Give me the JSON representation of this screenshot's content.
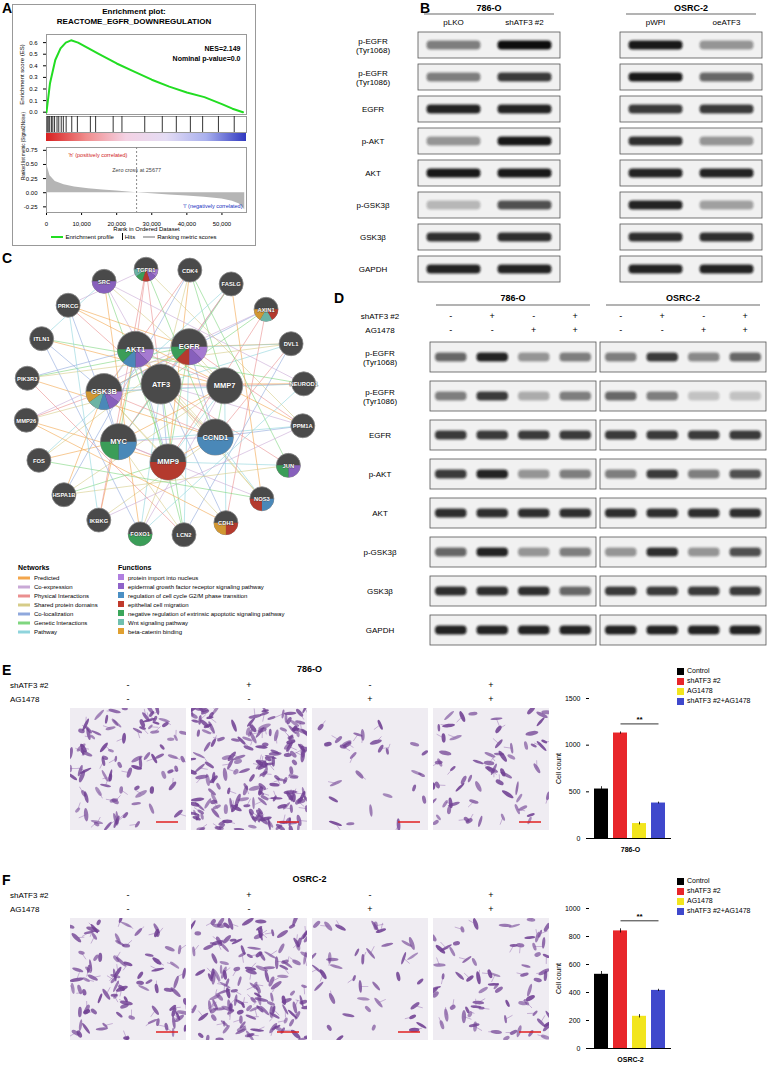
{
  "panel_labels": [
    "A",
    "B",
    "C",
    "D",
    "E",
    "F"
  ],
  "chart_data": [
    {
      "type": "line",
      "title": "Enrichment plot:",
      "subtitle": "REACTOME_EGFR_DOWNREGULATION",
      "ylabel": "Enrichment score (ES)",
      "x": [
        0,
        1000,
        2500,
        4000,
        5500,
        7000,
        9000,
        12000,
        15000,
        20000,
        25000,
        30000,
        35000,
        40000,
        45000,
        50000,
        53000,
        56000
      ],
      "series": [
        {
          "name": "Enrichment profile",
          "color": "#22dd22",
          "values": [
            0,
            0.25,
            0.45,
            0.55,
            0.6,
            0.62,
            0.6,
            0.55,
            0.5,
            0.42,
            0.35,
            0.28,
            0.22,
            0.17,
            0.13,
            0.07,
            0.03,
            0
          ]
        }
      ],
      "hits": [
        200,
        500,
        900,
        1400,
        1800,
        2300,
        3000,
        3500,
        4200,
        4800,
        5600,
        7200,
        8800,
        12500,
        14000,
        19000,
        21500,
        28000,
        33000,
        37000,
        41000,
        44500,
        49000,
        53500
      ],
      "hits_label": "Hits",
      "annotations": [
        "NES=2.149",
        "Nominal p-value=0.0"
      ],
      "xlim": [
        0,
        57000
      ],
      "ylim": [
        -0.02,
        0.67
      ],
      "yticks": [
        {
          "value": 0,
          "label": "0.0"
        },
        0.1,
        0.2,
        0.3,
        0.4,
        0.5,
        0.6
      ],
      "tick_labels": "y"
    },
    {
      "type": "area",
      "xlabel": "Rank in Ordered Dataset",
      "ylabel": "Ranked list metric (Signal2Noise)",
      "x": [
        0,
        300,
        1000,
        2500,
        5000,
        8000,
        12000,
        16000,
        20000,
        25677,
        30000,
        35000,
        40000,
        45000,
        50000,
        53000,
        55000,
        56500
      ],
      "series": [
        {
          "name": "Ranking metric scores",
          "color": "#b5b5b5",
          "values": [
            0.72,
            0.45,
            0.3,
            0.2,
            0.14,
            0.1,
            0.07,
            0.05,
            0.03,
            0,
            -0.02,
            -0.04,
            -0.06,
            -0.08,
            -0.11,
            -0.15,
            -0.2,
            -0.3
          ]
        }
      ],
      "annotations": [
        {
          "text": "Zero cross at 25677",
          "x": 25677
        }
      ],
      "positive_label": "'h' (positively correlated)",
      "negative_label": "'l' (negatively correlated)",
      "xlim": [
        0,
        57000
      ],
      "ylim": [
        -0.35,
        0.8
      ],
      "xticks": [
        0,
        {
          "value": 10000,
          "label": "10,000"
        },
        {
          "value": 20000,
          "label": "20,000"
        },
        {
          "value": 30000,
          "label": "30,000"
        },
        {
          "value": 40000,
          "label": "40,000"
        },
        {
          "value": 50000,
          "label": "50,000"
        }
      ],
      "yticks": [
        0.75,
        {
          "value": 0.5,
          "label": "0.50"
        },
        0.25,
        {
          "value": 0,
          "label": "0.00"
        },
        -0.25
      ]
    },
    {
      "type": "bar",
      "xlabel": "786-O",
      "ylabel": "Cell count",
      "categories": [
        "Control",
        "shATF3 #2",
        "AG1478",
        "shATF3 #2+AG1478"
      ],
      "values": [
        530,
        1130,
        160,
        380
      ],
      "errors": [
        25,
        12,
        15,
        10
      ],
      "colors": [
        "#000000",
        "#e8262a",
        "#f2e51d",
        "#3f48cc"
      ],
      "ylim": [
        0,
        1500
      ],
      "yticks": [
        0,
        500,
        1000,
        1500
      ],
      "legend": "right",
      "significance": {
        "between": [
          "shATF3 #2",
          "shATF3 #2+AG1478"
        ],
        "label": "**"
      }
    },
    {
      "type": "bar",
      "xlabel": "OSRC-2",
      "ylabel": "Cell count",
      "categories": [
        "Control",
        "shATF3 #2",
        "AG1478",
        "shATF3 #2+AG1478"
      ],
      "values": [
        530,
        840,
        230,
        415
      ],
      "errors": [
        20,
        15,
        12,
        8
      ],
      "colors": [
        "#000000",
        "#e8262a",
        "#f2e51d",
        "#3f48cc"
      ],
      "ylim": [
        0,
        1000
      ],
      "yticks": [
        0,
        200,
        400,
        600,
        800,
        1000
      ],
      "legend": "right",
      "significance": {
        "between": [
          "shATF3 #2",
          "shATF3 #2+AG1478"
        ],
        "label": "**"
      }
    }
  ],
  "blot_b": {
    "groups": [
      {
        "name": "786-O",
        "lanes": [
          "pLKO",
          "shATF3 #2"
        ]
      },
      {
        "name": "OSRC-2",
        "lanes": [
          "pWPI",
          "oeATF3"
        ]
      }
    ],
    "rows": [
      {
        "label": [
          "p-EGFR",
          "(Tyr1068)"
        ],
        "intensity": [
          0.5,
          1.0,
          0.95,
          0.4
        ]
      },
      {
        "label": [
          "p-EGFR",
          "(Tyr1086)"
        ],
        "intensity": [
          0.5,
          0.8,
          0.95,
          0.6
        ]
      },
      {
        "label": [
          "EGFR"
        ],
        "intensity": [
          0.9,
          0.9,
          0.8,
          0.8
        ]
      },
      {
        "label": [
          "p-AKT"
        ],
        "intensity": [
          0.4,
          0.95,
          0.85,
          0.4
        ]
      },
      {
        "label": [
          "AKT"
        ],
        "intensity": [
          0.95,
          0.95,
          0.9,
          0.9
        ]
      },
      {
        "label": [
          "p-GSK3β"
        ],
        "intensity": [
          0.25,
          0.7,
          0.9,
          0.35
        ]
      },
      {
        "label": [
          "GSK3β"
        ],
        "intensity": [
          0.85,
          0.85,
          0.85,
          0.85
        ]
      },
      {
        "label": [
          "GAPDH"
        ],
        "intensity": [
          0.9,
          0.9,
          0.9,
          0.9
        ]
      }
    ]
  },
  "blot_d": {
    "groups": [
      {
        "name": "786-O"
      },
      {
        "name": "OSRC-2"
      }
    ],
    "conditions": [
      {
        "label": "shATF3 #2",
        "signs": [
          "-",
          "+",
          "-",
          "+",
          "-",
          "+",
          "-",
          "+"
        ]
      },
      {
        "label": "AG1478",
        "signs": [
          "-",
          "-",
          "+",
          "+",
          "-",
          "-",
          "+",
          "+"
        ]
      }
    ],
    "rows": [
      {
        "label": [
          "p-EGFR",
          "(Tyr1068)"
        ],
        "intensity": [
          0.6,
          0.9,
          0.4,
          0.5,
          0.5,
          0.8,
          0.45,
          0.6
        ]
      },
      {
        "label": [
          "p-EGFR",
          "(Tyr1086)"
        ],
        "intensity": [
          0.5,
          0.8,
          0.3,
          0.5,
          0.6,
          0.5,
          0.2,
          0.2
        ]
      },
      {
        "label": [
          "EGFR"
        ],
        "intensity": [
          0.8,
          0.8,
          0.8,
          0.8,
          0.8,
          0.8,
          0.8,
          0.8
        ]
      },
      {
        "label": [
          "p-AKT"
        ],
        "intensity": [
          0.8,
          0.9,
          0.4,
          0.5,
          0.5,
          0.8,
          0.5,
          0.7
        ]
      },
      {
        "label": [
          "AKT"
        ],
        "intensity": [
          0.85,
          0.85,
          0.85,
          0.85,
          0.85,
          0.85,
          0.85,
          0.85
        ]
      },
      {
        "label": [
          "p-GSK3β"
        ],
        "intensity": [
          0.6,
          0.9,
          0.4,
          0.5,
          0.4,
          0.85,
          0.4,
          0.7
        ]
      },
      {
        "label": [
          "GSK3β"
        ],
        "intensity": [
          0.85,
          0.85,
          0.85,
          0.6,
          0.8,
          0.8,
          0.8,
          0.8
        ]
      },
      {
        "label": [
          "GAPDH"
        ],
        "intensity": [
          0.9,
          0.9,
          0.9,
          0.9,
          0.9,
          0.9,
          0.9,
          0.9
        ]
      }
    ]
  },
  "network": {
    "nodes": [
      {
        "label": "ATF3",
        "functions": []
      },
      {
        "label": "EGFR",
        "functions": [
          0,
          1,
          3,
          4
        ]
      },
      {
        "label": "MMP7",
        "functions": []
      },
      {
        "label": "CCND1",
        "functions": [
          2
        ]
      },
      {
        "label": "MMP9",
        "functions": [
          3
        ]
      },
      {
        "label": "MYC",
        "functions": [
          2,
          4
        ]
      },
      {
        "label": "GSK3B",
        "functions": [
          0,
          1,
          2,
          5,
          6
        ]
      },
      {
        "label": "AKT1",
        "functions": [
          0,
          1,
          2,
          4
        ]
      },
      {
        "label": "SRC",
        "functions": [
          1
        ]
      },
      {
        "label": "TGFB1",
        "functions": [
          0,
          1,
          3,
          4,
          5
        ]
      },
      {
        "label": "CDK4",
        "functions": []
      },
      {
        "label": "FASLG",
        "functions": []
      },
      {
        "label": "AXIN1",
        "functions": [
          3,
          5,
          6
        ]
      },
      {
        "label": "DVL1",
        "functions": []
      },
      {
        "label": "NEUROD1",
        "functions": []
      },
      {
        "label": "PPM1A",
        "functions": []
      },
      {
        "label": "JUN",
        "functions": [
          1,
          4
        ]
      },
      {
        "label": "NOS3",
        "functions": [
          2,
          3
        ]
      },
      {
        "label": "CDH1",
        "functions": [
          3,
          6
        ]
      },
      {
        "label": "LCN2",
        "functions": []
      },
      {
        "label": "FOXO1",
        "functions": [
          4
        ]
      },
      {
        "label": "IKBKG",
        "functions": []
      },
      {
        "label": "HSPA1B",
        "functions": []
      },
      {
        "label": "FOS",
        "functions": []
      },
      {
        "label": "MMP26",
        "functions": []
      },
      {
        "label": "PIK3R3",
        "functions": []
      },
      {
        "label": "ITLN1",
        "functions": []
      },
      {
        "label": "PRKCG",
        "functions": []
      }
    ],
    "networks_title": "Networks",
    "networks": [
      {
        "name": "Predicted",
        "color": "#f3a64c"
      },
      {
        "name": "Co-expression",
        "color": "#c9a9d6"
      },
      {
        "name": "Physical Interactions",
        "color": "#ea8f8f"
      },
      {
        "name": "Shared protein domains",
        "color": "#d6cc88"
      },
      {
        "name": "Co-localization",
        "color": "#8fa8dc"
      },
      {
        "name": "Genetic Interactions",
        "color": "#7fd67f"
      },
      {
        "name": "Pathway",
        "color": "#8fd4dc"
      }
    ],
    "functions_title": "Functions",
    "functions": [
      {
        "name": "protein import into nucleus",
        "color": "#b07fe0"
      },
      {
        "name": "epidermal growth factor receptor signaling pathway",
        "color": "#8e63c9"
      },
      {
        "name": "regulation of cell cycle G2/M phase transition",
        "color": "#4a8fc4"
      },
      {
        "name": "epithelial cell migration",
        "color": "#c0392b"
      },
      {
        "name": "negative regulation of extrinsic apoptotic signaling pathway",
        "color": "#3aa65a"
      },
      {
        "name": "Wnt signaling pathway",
        "color": "#6fbfae"
      },
      {
        "name": "beta-catenin binding",
        "color": "#e0a030"
      }
    ]
  },
  "transwell": [
    {
      "title": "786-O",
      "conditions": [
        {
          "label": "shATF3 #2",
          "signs": [
            "-",
            "+",
            "-",
            "+"
          ]
        },
        {
          "label": "AG1478",
          "signs": [
            "-",
            "-",
            "+",
            "+"
          ]
        }
      ]
    },
    {
      "title": "OSRC-2",
      "conditions": [
        {
          "label": "shATF3 #2",
          "signs": [
            "-",
            "+",
            "-",
            "+"
          ]
        },
        {
          "label": "AG1478",
          "signs": [
            "-",
            "-",
            "+",
            "+"
          ]
        }
      ]
    }
  ]
}
